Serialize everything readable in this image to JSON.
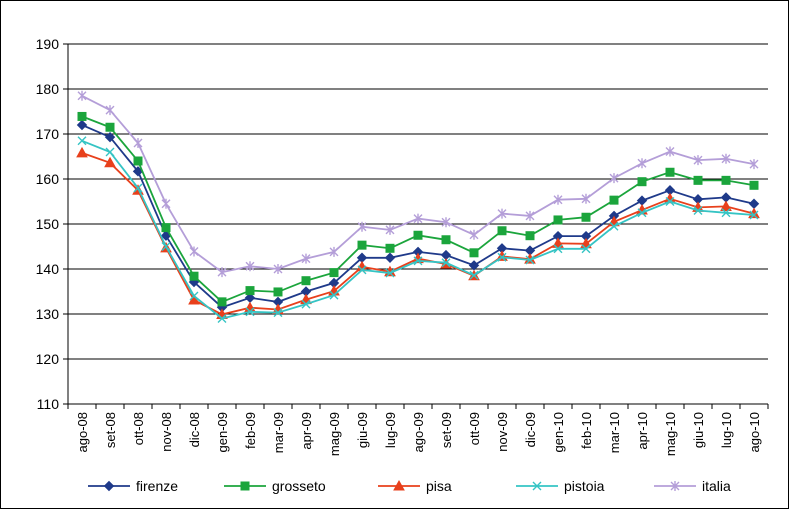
{
  "chart_data": {
    "type": "line",
    "title": "",
    "xlabel": "",
    "ylabel": "",
    "ylim": [
      110,
      190
    ],
    "yticks": [
      110,
      120,
      130,
      140,
      150,
      160,
      170,
      180,
      190
    ],
    "grid": true,
    "legend_position": "bottom",
    "categories": [
      "ago-08",
      "set-08",
      "ott-08",
      "nov-08",
      "dic-08",
      "gen-09",
      "feb-09",
      "mar-09",
      "apr-09",
      "mag-09",
      "giu-09",
      "lug-09",
      "ago-09",
      "set-09",
      "ott-09",
      "nov-09",
      "dic-09",
      "gen-10",
      "feb-10",
      "mar-10",
      "apr-10",
      "mag-10",
      "giu-10",
      "lug-10",
      "ago-10"
    ],
    "series": [
      {
        "name": "firenze",
        "color": "#1F3A8A",
        "marker": "diamond",
        "values": [
          172.0,
          169.3,
          161.7,
          147.4,
          137.1,
          131.5,
          133.6,
          132.7,
          135.0,
          136.9,
          142.5,
          142.5,
          143.8,
          143.1,
          140.8,
          144.6,
          144.1,
          147.3,
          147.3,
          151.8,
          155.2,
          157.5,
          155.5,
          155.9,
          154.5
        ]
      },
      {
        "name": "grosseto",
        "color": "#1BA53C",
        "marker": "square",
        "values": [
          173.9,
          171.5,
          164.0,
          149.2,
          138.4,
          132.7,
          135.2,
          134.9,
          137.4,
          139.2,
          145.3,
          144.6,
          147.5,
          146.5,
          143.6,
          148.5,
          147.4,
          150.9,
          151.5,
          155.3,
          159.4,
          161.5,
          159.7,
          159.7,
          158.6
        ]
      },
      {
        "name": "pisa",
        "color": "#E8401C",
        "marker": "triangle",
        "values": [
          165.8,
          163.6,
          157.5,
          144.7,
          133.1,
          129.9,
          131.4,
          131.0,
          133.2,
          135.1,
          140.5,
          139.4,
          142.3,
          141.1,
          138.5,
          142.8,
          142.2,
          145.7,
          145.6,
          150.5,
          153.1,
          155.6,
          153.7,
          153.9,
          152.3
        ]
      },
      {
        "name": "pistoia",
        "color": "#35C4C4",
        "marker": "x",
        "values": [
          168.5,
          166.0,
          158.0,
          145.0,
          134.0,
          129.0,
          130.5,
          130.3,
          132.2,
          134.2,
          139.8,
          139.1,
          141.8,
          141.4,
          138.6,
          142.6,
          142.0,
          144.5,
          144.5,
          149.5,
          152.5,
          155.0,
          153.0,
          152.5,
          152.0
        ]
      },
      {
        "name": "italia",
        "color": "#B49ED8",
        "marker": "asterisk",
        "values": [
          178.5,
          175.3,
          168.0,
          154.5,
          143.9,
          139.3,
          140.6,
          140.0,
          142.3,
          143.8,
          149.4,
          148.7,
          151.2,
          150.4,
          147.6,
          152.3,
          151.8,
          155.4,
          155.6,
          160.2,
          163.5,
          166.1,
          164.2,
          164.5,
          163.3
        ]
      }
    ]
  }
}
